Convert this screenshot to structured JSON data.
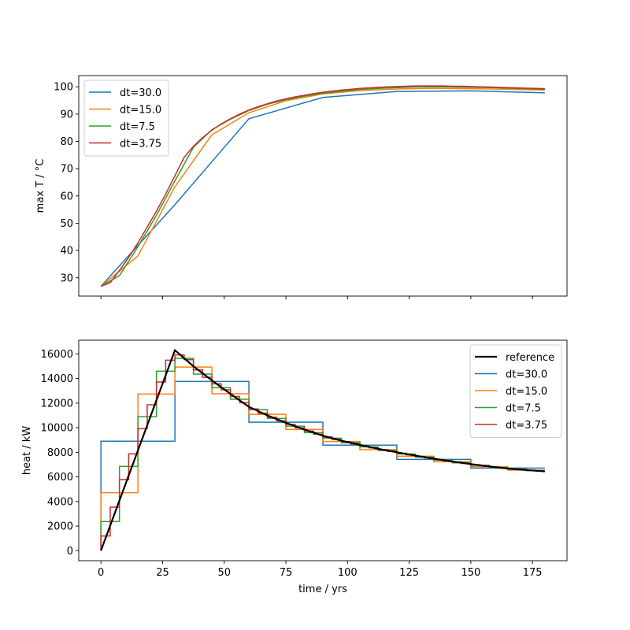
{
  "chart_data": [
    {
      "type": "line",
      "ylabel": "max T / °C",
      "xlabel": "",
      "xlim": [
        -9,
        189
      ],
      "ylim": [
        23.3,
        104.1
      ],
      "xticks": [
        0,
        25,
        50,
        75,
        100,
        125,
        150,
        175
      ],
      "xtick_labels_visible": false,
      "yticks": [
        30,
        40,
        50,
        60,
        70,
        80,
        90,
        100
      ],
      "ytick_labels": [
        "30",
        "40",
        "50",
        "60",
        "70",
        "80",
        "90",
        "100"
      ],
      "grid": false,
      "legend": "top-left",
      "series": [
        {
          "name": "dt=30.0",
          "color": "#1f77b4",
          "dt": 30,
          "y": [
            26.9,
            56.8,
            88.3,
            96.1,
            98.3,
            98.5,
            97.8
          ]
        },
        {
          "name": "dt=15.0",
          "color": "#ff7f0e",
          "dt": 15,
          "y": [
            26.9,
            38.0,
            63.4,
            82.4,
            90.5,
            94.9,
            97.4,
            98.6,
            99.2,
            99.4,
            99.3,
            99.1,
            98.8
          ]
        },
        {
          "name": "dt=7.5",
          "color": "#2ca02c",
          "dt": 7.5,
          "y": [
            26.9,
            30.8,
            41.4,
            52.9,
            65.5,
            77.8,
            84.3,
            88.1,
            91.3,
            93.6,
            95.3,
            96.6,
            97.6,
            98.4,
            99.0,
            99.4,
            99.7,
            99.9,
            100.0,
            99.9,
            99.8,
            99.7,
            99.5,
            99.3,
            99.1
          ]
        },
        {
          "name": "dt=3.75",
          "color": "#d62728",
          "dt": 3.75,
          "y": [
            26.9,
            28.2,
            32.7,
            37.5,
            42.8,
            48.6,
            54.4,
            60.7,
            67.4,
            74.2,
            78.2,
            81.4,
            84.1,
            86.4,
            88.3,
            90.0,
            91.5,
            92.7,
            93.8,
            94.8,
            95.6,
            96.3,
            96.9,
            97.5,
            98.0,
            98.4,
            98.8,
            99.1,
            99.4,
            99.6,
            99.8,
            100.0,
            100.1,
            100.2,
            100.3,
            100.3,
            100.3,
            100.3,
            100.2,
            100.2,
            100.1,
            100.0,
            99.9,
            99.8,
            99.7,
            99.6,
            99.5,
            99.4,
            99.3
          ]
        }
      ]
    },
    {
      "type": "line",
      "xlabel": "time / yrs",
      "ylabel": "heat / kW",
      "xlim": [
        -9,
        189
      ],
      "ylim": [
        -815,
        17115
      ],
      "xticks": [
        0,
        25,
        50,
        75,
        100,
        125,
        150,
        175
      ],
      "xtick_labels": [
        "0",
        "25",
        "50",
        "75",
        "100",
        "125",
        "150",
        "175"
      ],
      "yticks": [
        0,
        2000,
        4000,
        6000,
        8000,
        10000,
        12000,
        14000,
        16000
      ],
      "ytick_labels": [
        "0",
        "2000",
        "4000",
        "6000",
        "8000",
        "10000",
        "12000",
        "14000",
        "16000"
      ],
      "grid": false,
      "legend": "top-right",
      "reference": {
        "name": "reference",
        "color": "#000000",
        "x": [
          0,
          30,
          37.5,
          45,
          52.5,
          60,
          67.5,
          75,
          82.5,
          90,
          97.5,
          105,
          112.5,
          120,
          127.5,
          135,
          142.5,
          150,
          157.5,
          165,
          172.5,
          180
        ],
        "y": [
          0,
          16300,
          15000,
          13850,
          12750,
          11700,
          11000,
          10400,
          9850,
          9350,
          8950,
          8600,
          8280,
          8000,
          7730,
          7480,
          7250,
          7040,
          6850,
          6680,
          6560,
          6450
        ]
      },
      "series": [
        {
          "name": "dt=30.0",
          "color": "#1f77b4",
          "dt": 30,
          "step_values": [
            8900,
            13760,
            10450,
            8580,
            7420,
            6720
          ]
        },
        {
          "name": "dt=15.0",
          "color": "#ff7f0e",
          "dt": 15,
          "step_values": [
            4715,
            12740,
            14930,
            12760,
            11090,
            9860,
            8875,
            8210,
            7680,
            7230,
            6830,
            6550
          ]
        },
        {
          "name": "dt=7.5",
          "color": "#2ca02c",
          "dt": 7.5,
          "step_values": [
            2370,
            6850,
            10900,
            14590,
            15640,
            14360,
            13250,
            12310,
            11460,
            10750,
            10130,
            9600,
            9150,
            8775,
            8440,
            8140,
            7865,
            7605,
            7365,
            7145,
            6945,
            6765,
            6620,
            6505
          ]
        },
        {
          "name": "dt=3.75",
          "color": "#d62728",
          "dt": 3.75,
          "step_values": [
            1195,
            3540,
            5780,
            7870,
            9920,
            11860,
            13720,
            15490,
            15915,
            15530,
            14700,
            14100,
            13570,
            13080,
            12540,
            12030,
            11525,
            11175,
            10850,
            10550,
            10260,
            9990,
            9725,
            9475,
            9250,
            9050,
            8860,
            8690,
            8520,
            8360,
            8210,
            8070,
            7930,
            7800,
            7670,
            7540,
            7420,
            7310,
            7200,
            7090,
            6990,
            6900,
            6810,
            6720,
            6650,
            6590,
            6530,
            6480
          ]
        }
      ]
    }
  ]
}
